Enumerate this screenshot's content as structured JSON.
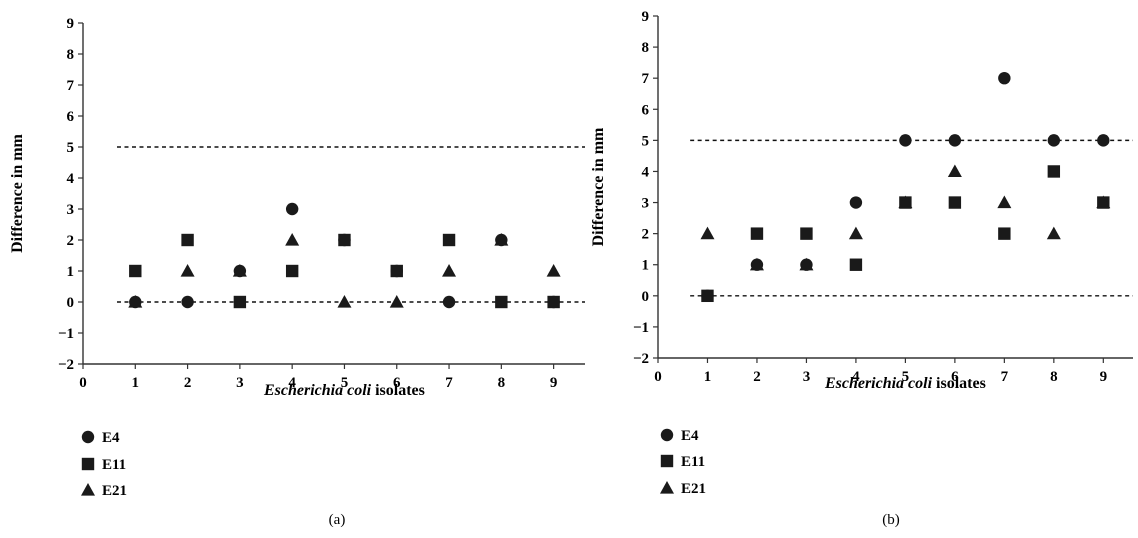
{
  "chart_data": [
    {
      "type": "scatter",
      "panel_label": "(a)",
      "xlabel_italic": "Escherichia coli",
      "xlabel_rest": " isolates",
      "ylabel": "Difference in mm",
      "xlim": [
        0,
        9.6
      ],
      "ylim": [
        -2,
        9
      ],
      "xticks": [
        0,
        1,
        2,
        3,
        4,
        5,
        6,
        7,
        8,
        9
      ],
      "yticks": [
        -2,
        -1,
        0,
        1,
        2,
        3,
        4,
        5,
        6,
        7,
        8,
        9
      ],
      "ytick_labels": [
        "−2",
        "−1",
        "0",
        "1",
        "2",
        "3",
        "4",
        "5",
        "6",
        "7",
        "8",
        "9"
      ],
      "reference_lines": [
        0,
        5
      ],
      "grid": false,
      "legend_position": "bottom-left",
      "series": [
        {
          "name": "E4",
          "marker": "circle",
          "x": [
            1,
            2,
            3,
            4,
            5,
            6,
            7,
            8,
            9
          ],
          "y": [
            0,
            0,
            1,
            3,
            2,
            1,
            0,
            2,
            0
          ]
        },
        {
          "name": "E11",
          "marker": "square",
          "x": [
            1,
            2,
            3,
            4,
            5,
            6,
            7,
            8,
            9
          ],
          "y": [
            1,
            2,
            0,
            1,
            2,
            1,
            2,
            0,
            0
          ]
        },
        {
          "name": "E21",
          "marker": "triangle",
          "x": [
            1,
            2,
            3,
            4,
            5,
            6,
            7,
            8,
            9
          ],
          "y": [
            0,
            1,
            1,
            2,
            0,
            0,
            1,
            2,
            1
          ]
        }
      ]
    },
    {
      "type": "scatter",
      "panel_label": "(b)",
      "xlabel_italic": "Escherichia coli",
      "xlabel_rest": " isolates",
      "ylabel": "Difference in mm",
      "xlim": [
        0,
        9.6
      ],
      "ylim": [
        -2,
        9
      ],
      "xticks": [
        0,
        1,
        2,
        3,
        4,
        5,
        6,
        7,
        8,
        9
      ],
      "yticks": [
        -2,
        -1,
        0,
        1,
        2,
        3,
        4,
        5,
        6,
        7,
        8,
        9
      ],
      "ytick_labels": [
        "−2",
        "−1",
        "0",
        "1",
        "2",
        "3",
        "4",
        "5",
        "6",
        "7",
        "8",
        "9"
      ],
      "reference_lines": [
        0,
        5
      ],
      "grid": false,
      "legend_position": "bottom-left",
      "series": [
        {
          "name": "E4",
          "marker": "circle",
          "x": [
            1,
            2,
            3,
            4,
            5,
            6,
            7,
            8,
            9
          ],
          "y": [
            0,
            1,
            1,
            3,
            5,
            5,
            7,
            5,
            5
          ]
        },
        {
          "name": "E11",
          "marker": "square",
          "x": [
            1,
            2,
            3,
            4,
            5,
            6,
            7,
            8,
            9
          ],
          "y": [
            0,
            2,
            2,
            1,
            3,
            3,
            2,
            4,
            3
          ]
        },
        {
          "name": "E21",
          "marker": "triangle",
          "x": [
            1,
            2,
            3,
            4,
            5,
            6,
            7,
            8,
            9
          ],
          "y": [
            2,
            1,
            1,
            2,
            3,
            4,
            3,
            2,
            3
          ]
        }
      ]
    }
  ]
}
